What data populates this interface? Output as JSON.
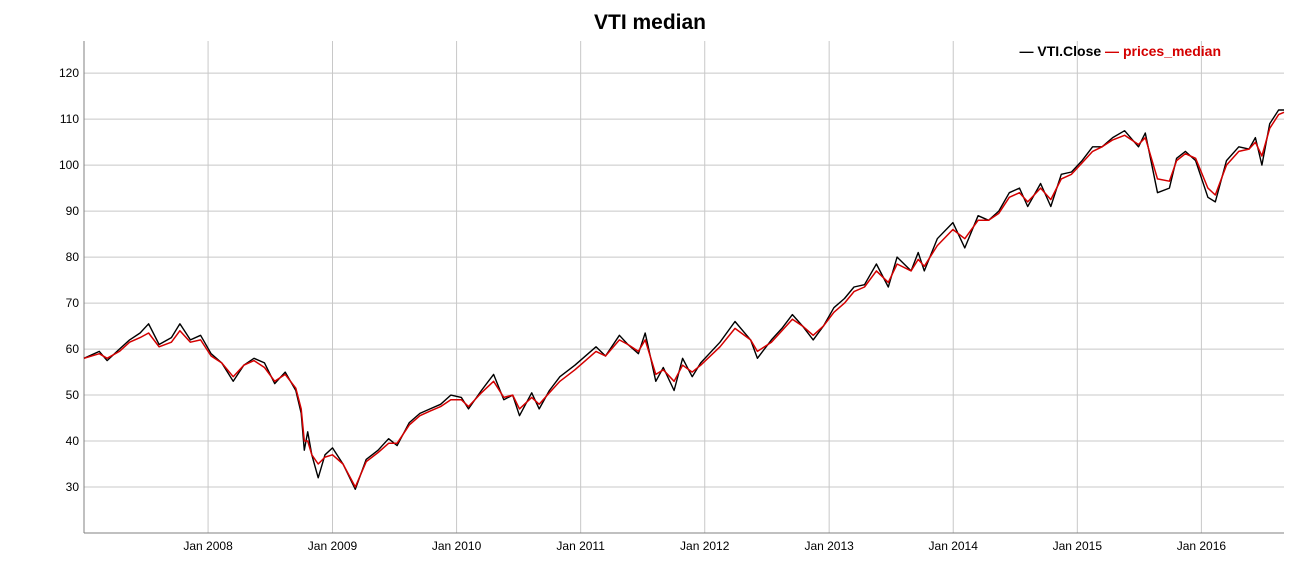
{
  "chart_data": {
    "type": "line",
    "title": "VTI median",
    "xlabel": "",
    "ylabel": "",
    "xlim": [
      "2007-01-01",
      "2016-08-31"
    ],
    "ylim": [
      20,
      127
    ],
    "grid": true,
    "legend_position": "top-right",
    "y_ticks": [
      30,
      40,
      50,
      60,
      70,
      80,
      90,
      100,
      110,
      120
    ],
    "x_ticks": [
      {
        "date": "2008-01-01",
        "label": "Jan 2008"
      },
      {
        "date": "2009-01-01",
        "label": "Jan 2009"
      },
      {
        "date": "2010-01-01",
        "label": "Jan 2010"
      },
      {
        "date": "2011-01-01",
        "label": "Jan 2011"
      },
      {
        "date": "2012-01-01",
        "label": "Jan 2012"
      },
      {
        "date": "2013-01-01",
        "label": "Jan 2013"
      },
      {
        "date": "2014-01-01",
        "label": "Jan 2014"
      },
      {
        "date": "2015-01-01",
        "label": "Jan 2015"
      },
      {
        "date": "2016-01-01",
        "label": "Jan 2016"
      }
    ],
    "series": [
      {
        "name": "VTI.Close",
        "color": "#000000",
        "points": [
          [
            "2007-01-01",
            58
          ],
          [
            "2007-02-15",
            59.5
          ],
          [
            "2007-03-10",
            57.5
          ],
          [
            "2007-04-15",
            60
          ],
          [
            "2007-05-15",
            62
          ],
          [
            "2007-06-15",
            63.5
          ],
          [
            "2007-07-10",
            65.5
          ],
          [
            "2007-08-10",
            61
          ],
          [
            "2007-09-15",
            62.5
          ],
          [
            "2007-10-10",
            65.5
          ],
          [
            "2007-11-10",
            62
          ],
          [
            "2007-12-10",
            63
          ],
          [
            "2008-01-10",
            59
          ],
          [
            "2008-02-10",
            57
          ],
          [
            "2008-03-15",
            53
          ],
          [
            "2008-04-15",
            56.5
          ],
          [
            "2008-05-15",
            58
          ],
          [
            "2008-06-15",
            57
          ],
          [
            "2008-07-15",
            52.5
          ],
          [
            "2008-08-15",
            55
          ],
          [
            "2008-09-15",
            51
          ],
          [
            "2008-10-01",
            46
          ],
          [
            "2008-10-10",
            38
          ],
          [
            "2008-10-20",
            42
          ],
          [
            "2008-11-01",
            37
          ],
          [
            "2008-11-20",
            32
          ],
          [
            "2008-12-10",
            37
          ],
          [
            "2009-01-01",
            38.5
          ],
          [
            "2009-02-01",
            35
          ],
          [
            "2009-03-09",
            29.5
          ],
          [
            "2009-04-10",
            36
          ],
          [
            "2009-05-15",
            38
          ],
          [
            "2009-06-15",
            40.5
          ],
          [
            "2009-07-10",
            39
          ],
          [
            "2009-08-15",
            44
          ],
          [
            "2009-09-15",
            46
          ],
          [
            "2009-10-15",
            47
          ],
          [
            "2009-11-15",
            48
          ],
          [
            "2009-12-15",
            50
          ],
          [
            "2010-01-15",
            49.5
          ],
          [
            "2010-02-05",
            47
          ],
          [
            "2010-03-15",
            51
          ],
          [
            "2010-04-20",
            54.5
          ],
          [
            "2010-05-20",
            49
          ],
          [
            "2010-06-15",
            50
          ],
          [
            "2010-07-05",
            45.5
          ],
          [
            "2010-08-10",
            50.5
          ],
          [
            "2010-09-01",
            47
          ],
          [
            "2010-10-01",
            51
          ],
          [
            "2010-11-01",
            54
          ],
          [
            "2010-12-15",
            56.5
          ],
          [
            "2011-02-15",
            60.5
          ],
          [
            "2011-03-15",
            58.5
          ],
          [
            "2011-04-25",
            63
          ],
          [
            "2011-05-20",
            61
          ],
          [
            "2011-06-20",
            59
          ],
          [
            "2011-07-10",
            63.5
          ],
          [
            "2011-08-10",
            53
          ],
          [
            "2011-09-01",
            56
          ],
          [
            "2011-10-03",
            51
          ],
          [
            "2011-10-28",
            58
          ],
          [
            "2011-11-25",
            54
          ],
          [
            "2011-12-20",
            57
          ],
          [
            "2012-02-15",
            61.5
          ],
          [
            "2012-03-30",
            66
          ],
          [
            "2012-05-15",
            62
          ],
          [
            "2012-06-04",
            58
          ],
          [
            "2012-07-15",
            62
          ],
          [
            "2012-08-15",
            64.5
          ],
          [
            "2012-09-15",
            67.5
          ],
          [
            "2012-10-15",
            65
          ],
          [
            "2012-11-15",
            62
          ],
          [
            "2012-12-15",
            65
          ],
          [
            "2013-01-15",
            69
          ],
          [
            "2013-02-15",
            71
          ],
          [
            "2013-03-15",
            73.5
          ],
          [
            "2013-04-15",
            74
          ],
          [
            "2013-05-20",
            78.5
          ],
          [
            "2013-06-24",
            73.5
          ],
          [
            "2013-07-20",
            80
          ],
          [
            "2013-08-30",
            77
          ],
          [
            "2013-09-20",
            81
          ],
          [
            "2013-10-08",
            77
          ],
          [
            "2013-11-15",
            84
          ],
          [
            "2013-12-31",
            87.5
          ],
          [
            "2014-02-04",
            82
          ],
          [
            "2014-03-15",
            89
          ],
          [
            "2014-04-15",
            88
          ],
          [
            "2014-05-15",
            90
          ],
          [
            "2014-06-15",
            94
          ],
          [
            "2014-07-15",
            95
          ],
          [
            "2014-08-08",
            91
          ],
          [
            "2014-09-15",
            96
          ],
          [
            "2014-10-15",
            91
          ],
          [
            "2014-11-15",
            98
          ],
          [
            "2014-12-15",
            98.5
          ],
          [
            "2015-01-15",
            101
          ],
          [
            "2015-02-15",
            104
          ],
          [
            "2015-03-15",
            104
          ],
          [
            "2015-04-15",
            106
          ],
          [
            "2015-05-20",
            107.5
          ],
          [
            "2015-06-30",
            104
          ],
          [
            "2015-07-20",
            107
          ],
          [
            "2015-08-25",
            94
          ],
          [
            "2015-09-29",
            95
          ],
          [
            "2015-10-20",
            101.5
          ],
          [
            "2015-11-15",
            103
          ],
          [
            "2015-12-15",
            101
          ],
          [
            "2016-01-20",
            93
          ],
          [
            "2016-02-11",
            92
          ],
          [
            "2016-03-15",
            101
          ],
          [
            "2016-04-20",
            104
          ],
          [
            "2016-05-20",
            103.5
          ],
          [
            "2016-06-08",
            106
          ],
          [
            "2016-06-27",
            100
          ],
          [
            "2016-07-20",
            109
          ],
          [
            "2016-08-15",
            112
          ],
          [
            "2016-08-31",
            112
          ]
        ]
      },
      {
        "name": "prices_median",
        "color": "#d40000",
        "points": [
          [
            "2007-01-01",
            58
          ],
          [
            "2007-02-15",
            59
          ],
          [
            "2007-03-10",
            58
          ],
          [
            "2007-04-15",
            59.5
          ],
          [
            "2007-05-15",
            61.5
          ],
          [
            "2007-06-15",
            62.5
          ],
          [
            "2007-07-10",
            63.5
          ],
          [
            "2007-08-10",
            60.5
          ],
          [
            "2007-09-15",
            61.5
          ],
          [
            "2007-10-10",
            64
          ],
          [
            "2007-11-10",
            61.5
          ],
          [
            "2007-12-10",
            62
          ],
          [
            "2008-01-10",
            58.5
          ],
          [
            "2008-02-10",
            57
          ],
          [
            "2008-03-15",
            54
          ],
          [
            "2008-04-15",
            56.5
          ],
          [
            "2008-05-15",
            57.5
          ],
          [
            "2008-06-15",
            56
          ],
          [
            "2008-07-15",
            53
          ],
          [
            "2008-08-15",
            54.5
          ],
          [
            "2008-09-15",
            51.5
          ],
          [
            "2008-10-01",
            47
          ],
          [
            "2008-10-10",
            40
          ],
          [
            "2008-10-20",
            40
          ],
          [
            "2008-11-01",
            37
          ],
          [
            "2008-11-20",
            35
          ],
          [
            "2008-12-10",
            36.5
          ],
          [
            "2009-01-01",
            37
          ],
          [
            "2009-02-01",
            35
          ],
          [
            "2009-03-09",
            30
          ],
          [
            "2009-04-10",
            35.5
          ],
          [
            "2009-05-15",
            37.5
          ],
          [
            "2009-06-15",
            39.5
          ],
          [
            "2009-07-10",
            39.5
          ],
          [
            "2009-08-15",
            43.5
          ],
          [
            "2009-09-15",
            45.5
          ],
          [
            "2009-10-15",
            46.5
          ],
          [
            "2009-11-15",
            47.5
          ],
          [
            "2009-12-15",
            49
          ],
          [
            "2010-01-15",
            49
          ],
          [
            "2010-02-05",
            47.5
          ],
          [
            "2010-03-15",
            50.5
          ],
          [
            "2010-04-20",
            53
          ],
          [
            "2010-05-20",
            49.5
          ],
          [
            "2010-06-15",
            50
          ],
          [
            "2010-07-05",
            47
          ],
          [
            "2010-08-10",
            49.5
          ],
          [
            "2010-09-01",
            48
          ],
          [
            "2010-10-01",
            50.5
          ],
          [
            "2010-11-01",
            53
          ],
          [
            "2010-12-15",
            55.5
          ],
          [
            "2011-02-15",
            59.5
          ],
          [
            "2011-03-15",
            58.5
          ],
          [
            "2011-04-25",
            62
          ],
          [
            "2011-05-20",
            61
          ],
          [
            "2011-06-20",
            59.5
          ],
          [
            "2011-07-10",
            62
          ],
          [
            "2011-08-10",
            54.5
          ],
          [
            "2011-09-01",
            55.5
          ],
          [
            "2011-10-03",
            53
          ],
          [
            "2011-10-28",
            56.5
          ],
          [
            "2011-11-25",
            55
          ],
          [
            "2011-12-20",
            56.5
          ],
          [
            "2012-02-15",
            60.5
          ],
          [
            "2012-03-30",
            64.5
          ],
          [
            "2012-05-15",
            62
          ],
          [
            "2012-06-04",
            59.5
          ],
          [
            "2012-07-15",
            61.5
          ],
          [
            "2012-08-15",
            64
          ],
          [
            "2012-09-15",
            66.5
          ],
          [
            "2012-10-15",
            65
          ],
          [
            "2012-11-15",
            63
          ],
          [
            "2012-12-15",
            65
          ],
          [
            "2013-01-15",
            68
          ],
          [
            "2013-02-15",
            70
          ],
          [
            "2013-03-15",
            72.5
          ],
          [
            "2013-04-15",
            73.5
          ],
          [
            "2013-05-20",
            77
          ],
          [
            "2013-06-24",
            74.5
          ],
          [
            "2013-07-20",
            78.5
          ],
          [
            "2013-08-30",
            77
          ],
          [
            "2013-09-20",
            79.5
          ],
          [
            "2013-10-08",
            78
          ],
          [
            "2013-11-15",
            82.5
          ],
          [
            "2013-12-31",
            86
          ],
          [
            "2014-02-04",
            84
          ],
          [
            "2014-03-15",
            88
          ],
          [
            "2014-04-15",
            88
          ],
          [
            "2014-05-15",
            89.5
          ],
          [
            "2014-06-15",
            93
          ],
          [
            "2014-07-15",
            94
          ],
          [
            "2014-08-08",
            92
          ],
          [
            "2014-09-15",
            95
          ],
          [
            "2014-10-15",
            92.5
          ],
          [
            "2014-11-15",
            97
          ],
          [
            "2014-12-15",
            98
          ],
          [
            "2015-01-15",
            100.5
          ],
          [
            "2015-02-15",
            103
          ],
          [
            "2015-03-15",
            104
          ],
          [
            "2015-04-15",
            105.5
          ],
          [
            "2015-05-20",
            106.5
          ],
          [
            "2015-06-30",
            104.5
          ],
          [
            "2015-07-20",
            106
          ],
          [
            "2015-08-25",
            97
          ],
          [
            "2015-09-29",
            96.5
          ],
          [
            "2015-10-20",
            101
          ],
          [
            "2015-11-15",
            102.5
          ],
          [
            "2015-12-15",
            101.5
          ],
          [
            "2016-01-20",
            95
          ],
          [
            "2016-02-11",
            93.5
          ],
          [
            "2016-03-15",
            100
          ],
          [
            "2016-04-20",
            103
          ],
          [
            "2016-05-20",
            103.5
          ],
          [
            "2016-06-08",
            105
          ],
          [
            "2016-06-27",
            102
          ],
          [
            "2016-07-20",
            108
          ],
          [
            "2016-08-15",
            111
          ],
          [
            "2016-08-31",
            111.5
          ]
        ]
      }
    ]
  }
}
